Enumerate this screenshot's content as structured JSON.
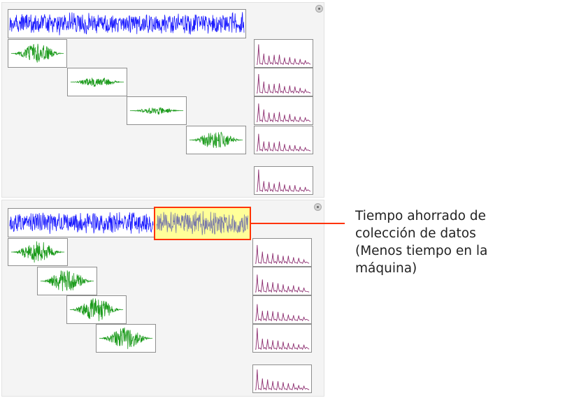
{
  "annotation": {
    "lines": [
      "Tiempo ahorrado de",
      "colección de datos",
      "(Menos tiempo en la",
      "máquina)"
    ]
  },
  "colors": {
    "signal": "#1a1aff",
    "window": "#1a9a1a",
    "spectrum": "#8b2b6e",
    "highlight_fill": "#ffff99",
    "highlight_border": "#ff3300",
    "highlight_signal": "#7a7aa8"
  },
  "icons": [
    "close-icon"
  ]
}
